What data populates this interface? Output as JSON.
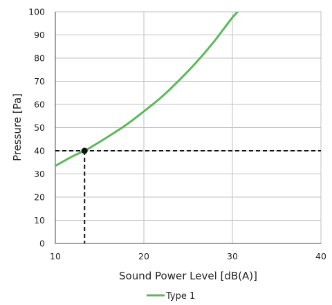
{
  "chart_data": {
    "type": "line",
    "title": "",
    "xlabel": "Sound Power Level [dB(A)]",
    "ylabel": "Pressure [Pa]",
    "xlim": [
      10,
      40
    ],
    "ylim": [
      0,
      100
    ],
    "xticks": [
      "10",
      "20",
      "30",
      "40"
    ],
    "yticks": [
      "0",
      "10",
      "20",
      "30",
      "40",
      "50",
      "60",
      "70",
      "80",
      "90",
      "100"
    ],
    "grid": true,
    "legend_position": "bottom-center",
    "colors": {
      "series": "#5cb85c",
      "grid": "#bfbfbf",
      "marker": "#111111",
      "reference_lines": "#111111"
    },
    "series": [
      {
        "name": "Type 1",
        "x": [
          10,
          12,
          13.3,
          14,
          16,
          18,
          20,
          22,
          24,
          26,
          28,
          30,
          31
        ],
        "y": [
          33.5,
          37.7,
          40,
          41.5,
          46.2,
          51.2,
          57,
          63.2,
          70.5,
          78.5,
          87.5,
          97.5,
          101.5
        ]
      }
    ],
    "highlight_point": {
      "x": 13.3,
      "y": 40
    }
  }
}
